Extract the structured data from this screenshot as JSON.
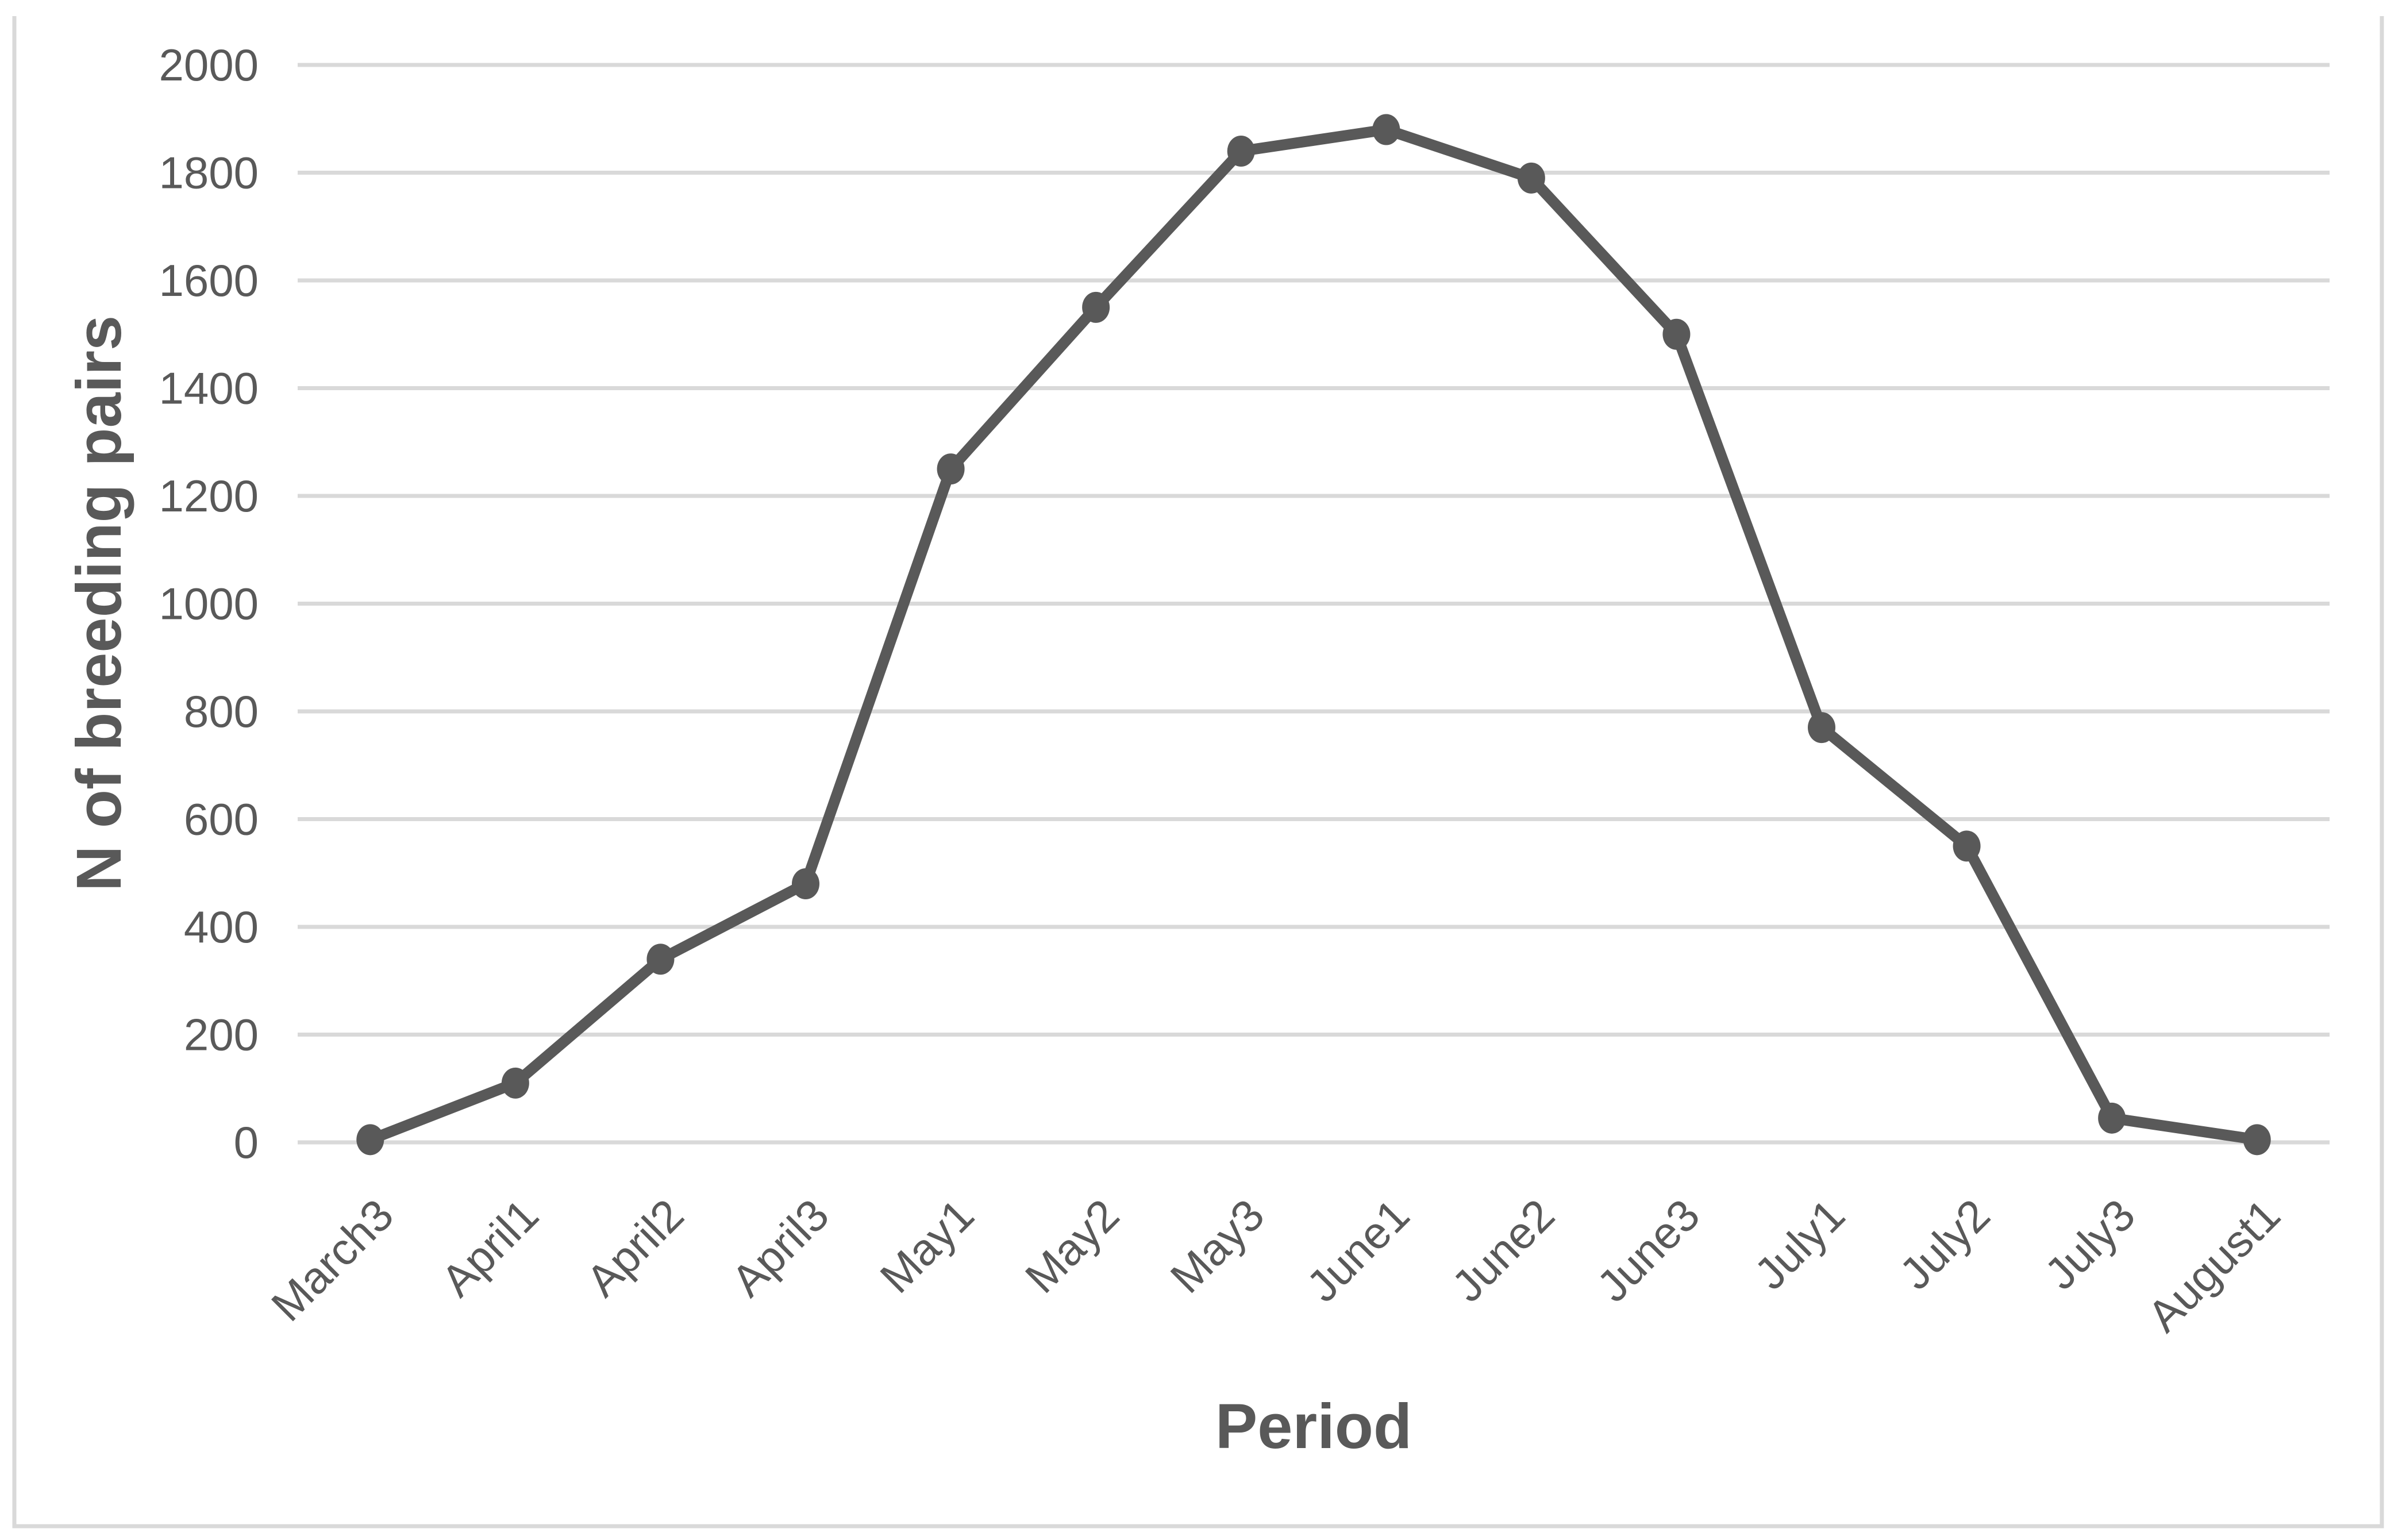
{
  "figure": {
    "xlabel": "Period",
    "ylabel": "N of breeding pairs"
  },
  "chart_data": {
    "type": "line",
    "title": "",
    "xlabel": "Period",
    "ylabel": "N of breeding pairs",
    "categories": [
      "March3",
      "April1",
      "April2",
      "April3",
      "May1",
      "May2",
      "May3",
      "June1",
      "June2",
      "June3",
      "July1",
      "July2",
      "July3",
      "August1"
    ],
    "series": [
      {
        "name": "Breeding pairs",
        "values": [
          5,
          110,
          340,
          480,
          1250,
          1550,
          1840,
          1880,
          1790,
          1500,
          770,
          550,
          45,
          5
        ]
      }
    ],
    "ylim": [
      0,
      2000
    ],
    "ytick_step": 200,
    "ytick_labels": [
      "0",
      "200",
      "400",
      "600",
      "800",
      "1000",
      "1200",
      "1400",
      "1600",
      "1800",
      "2000"
    ],
    "grid": "horizontal",
    "legend": "none",
    "marker": "circle",
    "x_label_rotation_deg": 45,
    "colors": {
      "series": "#595959",
      "gridline": "#D9D9D9",
      "figure_border": "#D9D9D9",
      "text": "#595959",
      "background": "#FFFFFF"
    }
  }
}
